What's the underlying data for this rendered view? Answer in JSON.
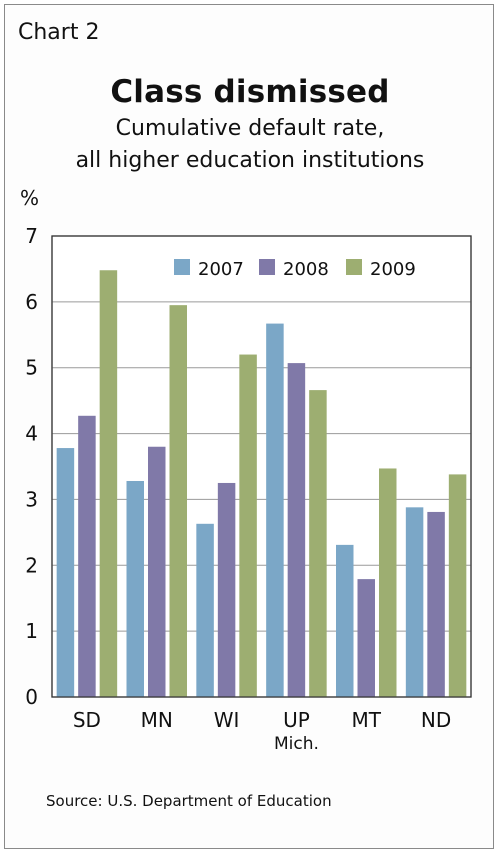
{
  "header": {
    "chart_label": "Chart 2",
    "title": "Class dismissed",
    "subtitle_line1": "Cumulative default rate,",
    "subtitle_line2": "all higher education institutions",
    "unit": "%"
  },
  "footer": {
    "source": "Source: U.S. Department of Education"
  },
  "chart_data": {
    "type": "bar",
    "categories": [
      "SD",
      "MN",
      "WI",
      "UP\nMich.",
      "MT",
      "ND"
    ],
    "series": [
      {
        "name": "2007",
        "color": "#7ba7c7",
        "values": [
          3.78,
          3.28,
          2.63,
          5.67,
          2.31,
          2.88
        ]
      },
      {
        "name": "2008",
        "color": "#8079a8",
        "values": [
          4.27,
          3.8,
          3.25,
          5.07,
          1.79,
          2.81
        ]
      },
      {
        "name": "2009",
        "color": "#9dae71",
        "values": [
          6.48,
          5.95,
          5.2,
          4.66,
          3.47,
          3.38
        ]
      }
    ],
    "ylim": [
      0,
      7
    ],
    "yticks": [
      0,
      1,
      2,
      3,
      4,
      5,
      6,
      7
    ],
    "ylabel": "%",
    "grid": true,
    "legend": "top-center"
  }
}
